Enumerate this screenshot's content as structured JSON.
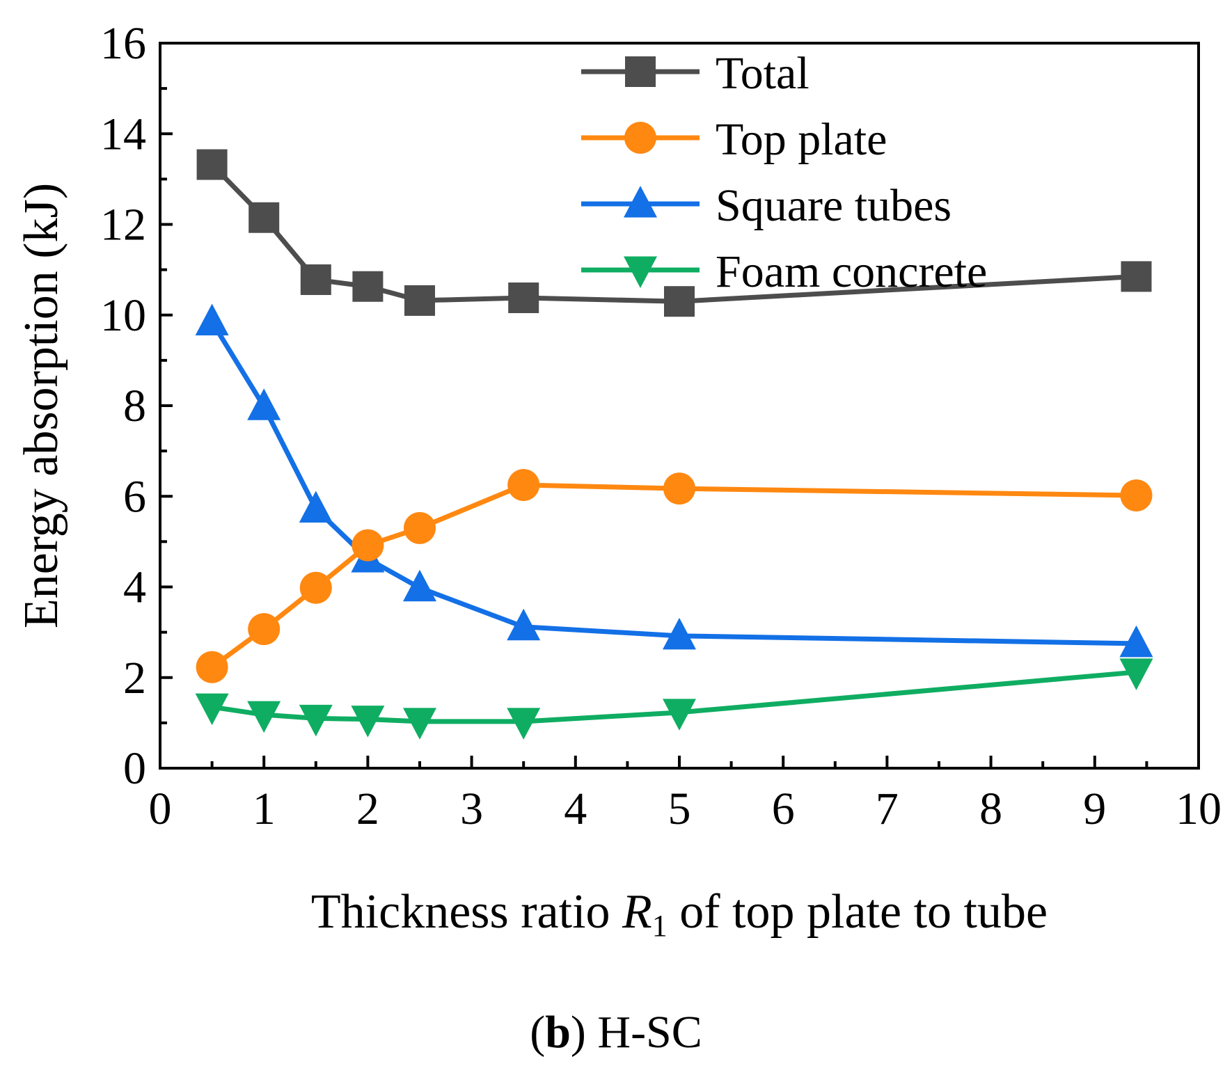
{
  "chart_data": {
    "type": "line",
    "title": "",
    "xlabel": "Thickness ratio R1 of top plate to tube",
    "xlabel_parts": {
      "prefix": "Thickness ratio ",
      "var": "R",
      "sub": "1",
      "suffix": " of top plate to tube"
    },
    "ylabel": "Energy absorption (kJ)",
    "xlim": [
      0,
      10
    ],
    "ylim": [
      0,
      16
    ],
    "xticks": [
      0,
      1,
      2,
      3,
      4,
      5,
      6,
      7,
      8,
      9,
      10
    ],
    "yticks": [
      0,
      2,
      4,
      6,
      8,
      10,
      12,
      14,
      16
    ],
    "x": [
      0.5,
      1,
      1.5,
      2,
      2.5,
      3.5,
      5,
      9.4
    ],
    "series": [
      {
        "name": "Total",
        "color": "#4d4d4d",
        "marker": "square",
        "values": [
          13.32,
          12.15,
          10.78,
          10.63,
          10.32,
          10.38,
          10.3,
          10.85
        ]
      },
      {
        "name": "Top plate",
        "color": "#ff8811",
        "marker": "circle",
        "values": [
          2.23,
          3.07,
          3.98,
          4.92,
          5.3,
          6.25,
          6.17,
          6.02
        ]
      },
      {
        "name": "Square tubes",
        "color": "#1370e6",
        "marker": "triangle-up",
        "values": [
          9.85,
          7.98,
          5.72,
          4.62,
          3.98,
          3.12,
          2.92,
          2.75
        ]
      },
      {
        "name": "Foam concrete",
        "color": "#0fad62",
        "marker": "triangle-down",
        "values": [
          1.35,
          1.18,
          1.1,
          1.08,
          1.03,
          1.03,
          1.23,
          2.12
        ]
      }
    ],
    "legend_position": "top-right"
  },
  "caption": {
    "label": "b",
    "text": "H-SC"
  }
}
